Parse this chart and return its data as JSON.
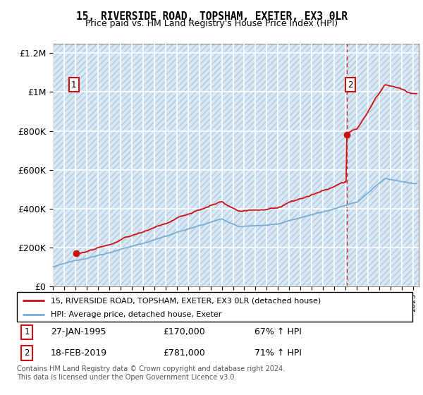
{
  "title": "15, RIVERSIDE ROAD, TOPSHAM, EXETER, EX3 0LR",
  "subtitle": "Price paid vs. HM Land Registry's House Price Index (HPI)",
  "xlim_start": 1993.0,
  "xlim_end": 2025.5,
  "ylim_min": 0,
  "ylim_max": 1250000,
  "yticks": [
    0,
    200000,
    400000,
    600000,
    800000,
    1000000,
    1200000
  ],
  "ytick_labels": [
    "£0",
    "£200K",
    "£400K",
    "£600K",
    "£800K",
    "£1M",
    "£1.2M"
  ],
  "hpi_color": "#7aadd4",
  "price_color": "#cc1111",
  "dashed_line_color": "#cc1111",
  "hatch_fill_color": "#d8e8f5",
  "hatch_edge_color": "#b0c8e0",
  "grid_color": "white",
  "sale1_x": 1995.07,
  "sale1_y": 170000,
  "sale2_x": 2019.12,
  "sale2_y": 781000,
  "legend_line1": "15, RIVERSIDE ROAD, TOPSHAM, EXETER, EX3 0LR (detached house)",
  "legend_line2": "HPI: Average price, detached house, Exeter",
  "footer": "Contains HM Land Registry data © Crown copyright and database right 2024.\nThis data is licensed under the Open Government Licence v3.0."
}
